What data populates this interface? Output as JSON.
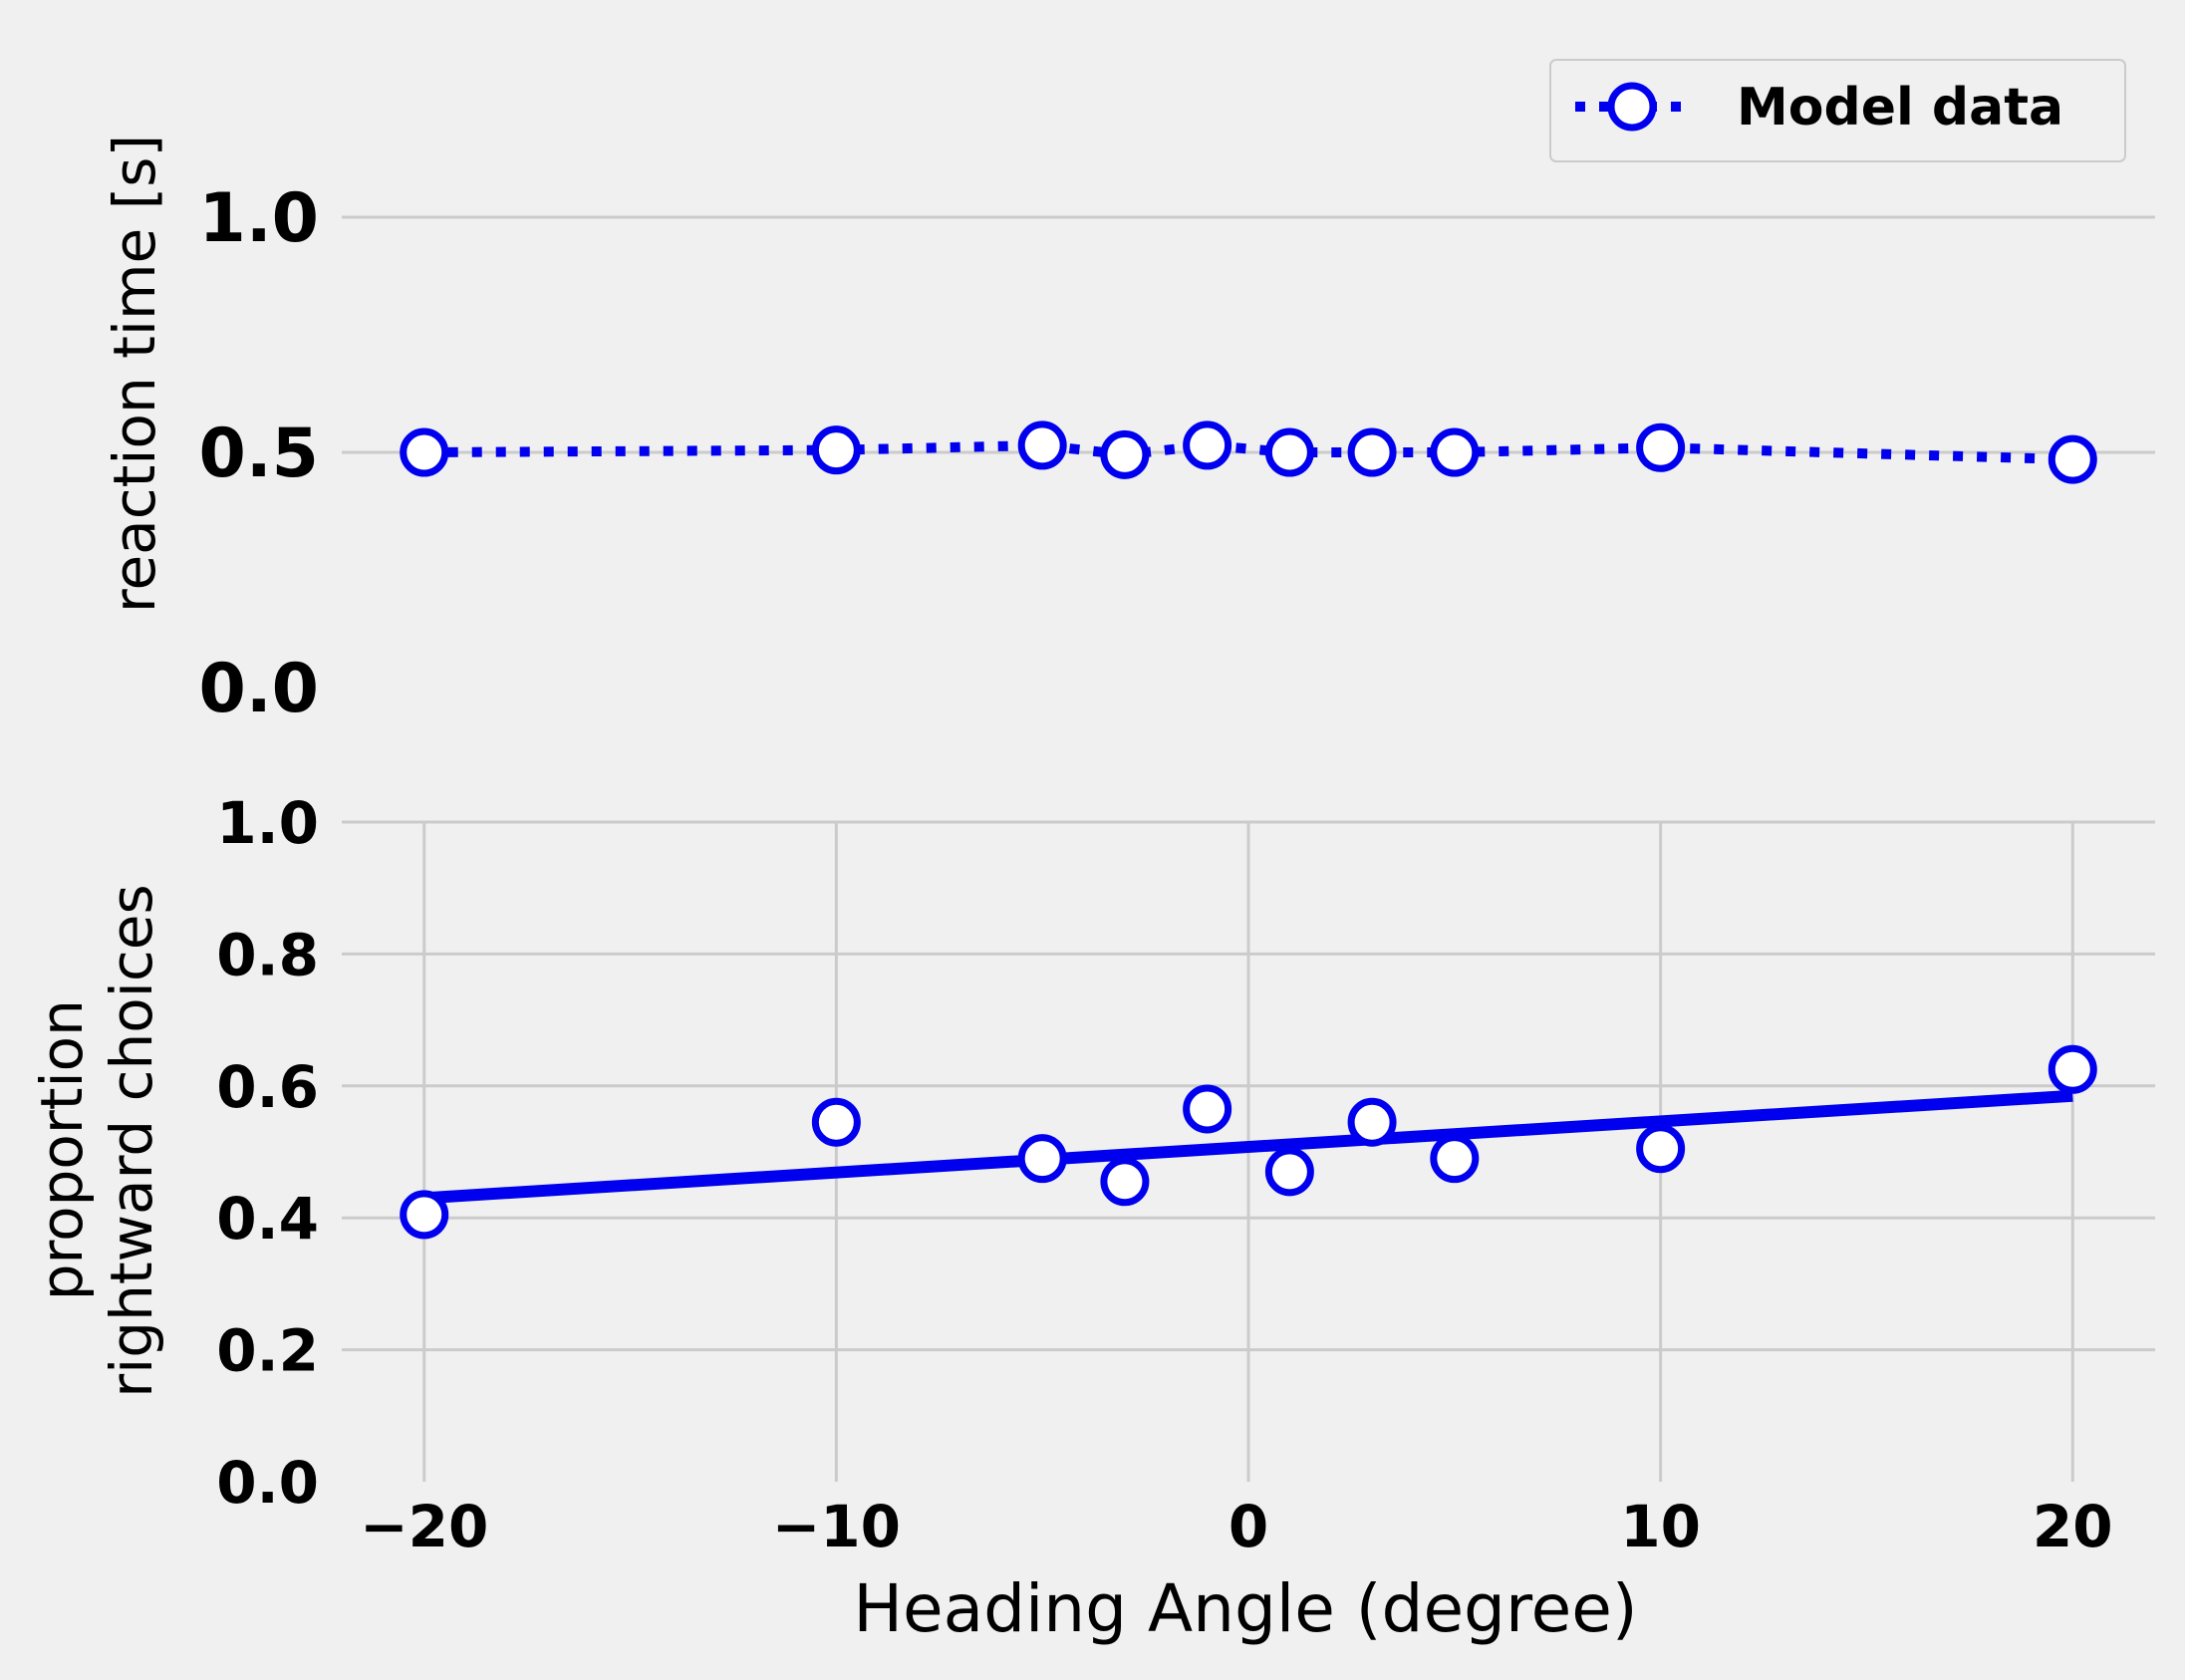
{
  "colors": {
    "background": "#f0f0f0",
    "grid": "#cbcbcb",
    "series": "#0000ee"
  },
  "chart_data": [
    {
      "type": "line",
      "panel": "top",
      "ylabel": "reaction time [s]",
      "xlabel": "",
      "ylim": [
        0,
        1.0
      ],
      "yticks": [
        "0.0",
        "0.5",
        "1.0"
      ],
      "xlim": [
        -22,
        22
      ],
      "grid": "horizontal",
      "legend": {
        "placement": "top-right",
        "label": "Model data"
      },
      "series": [
        {
          "name": "Model data",
          "style": "dotted-line-with-open-circles",
          "x": [
            -20,
            -10,
            -5,
            -3,
            -1,
            1,
            3,
            5,
            10,
            20
          ],
          "y": [
            0.5,
            0.505,
            0.515,
            0.495,
            0.515,
            0.5,
            0.5,
            0.5,
            0.51,
            0.485
          ]
        }
      ]
    },
    {
      "type": "scatter",
      "panel": "bottom",
      "ylabel": "proportion\nrightward choices",
      "xlabel": "Heading Angle (degree)",
      "ylim": [
        0,
        1.0
      ],
      "yticks": [
        "0.0",
        "0.2",
        "0.4",
        "0.6",
        "0.8",
        "1.0"
      ],
      "xlim": [
        -22,
        22
      ],
      "xticks": [
        "−20",
        "−10",
        "0",
        "10",
        "20"
      ],
      "grid": "both",
      "series": [
        {
          "style": "open-circles",
          "x": [
            -20,
            -10,
            -5,
            -3,
            -1,
            1,
            3,
            5,
            10,
            20
          ],
          "y": [
            0.405,
            0.545,
            0.49,
            0.455,
            0.565,
            0.47,
            0.545,
            0.49,
            0.505,
            0.625
          ]
        }
      ],
      "fit_line": {
        "style": "solid",
        "x": [
          -20,
          20
        ],
        "y": [
          0.43,
          0.585
        ]
      }
    }
  ]
}
